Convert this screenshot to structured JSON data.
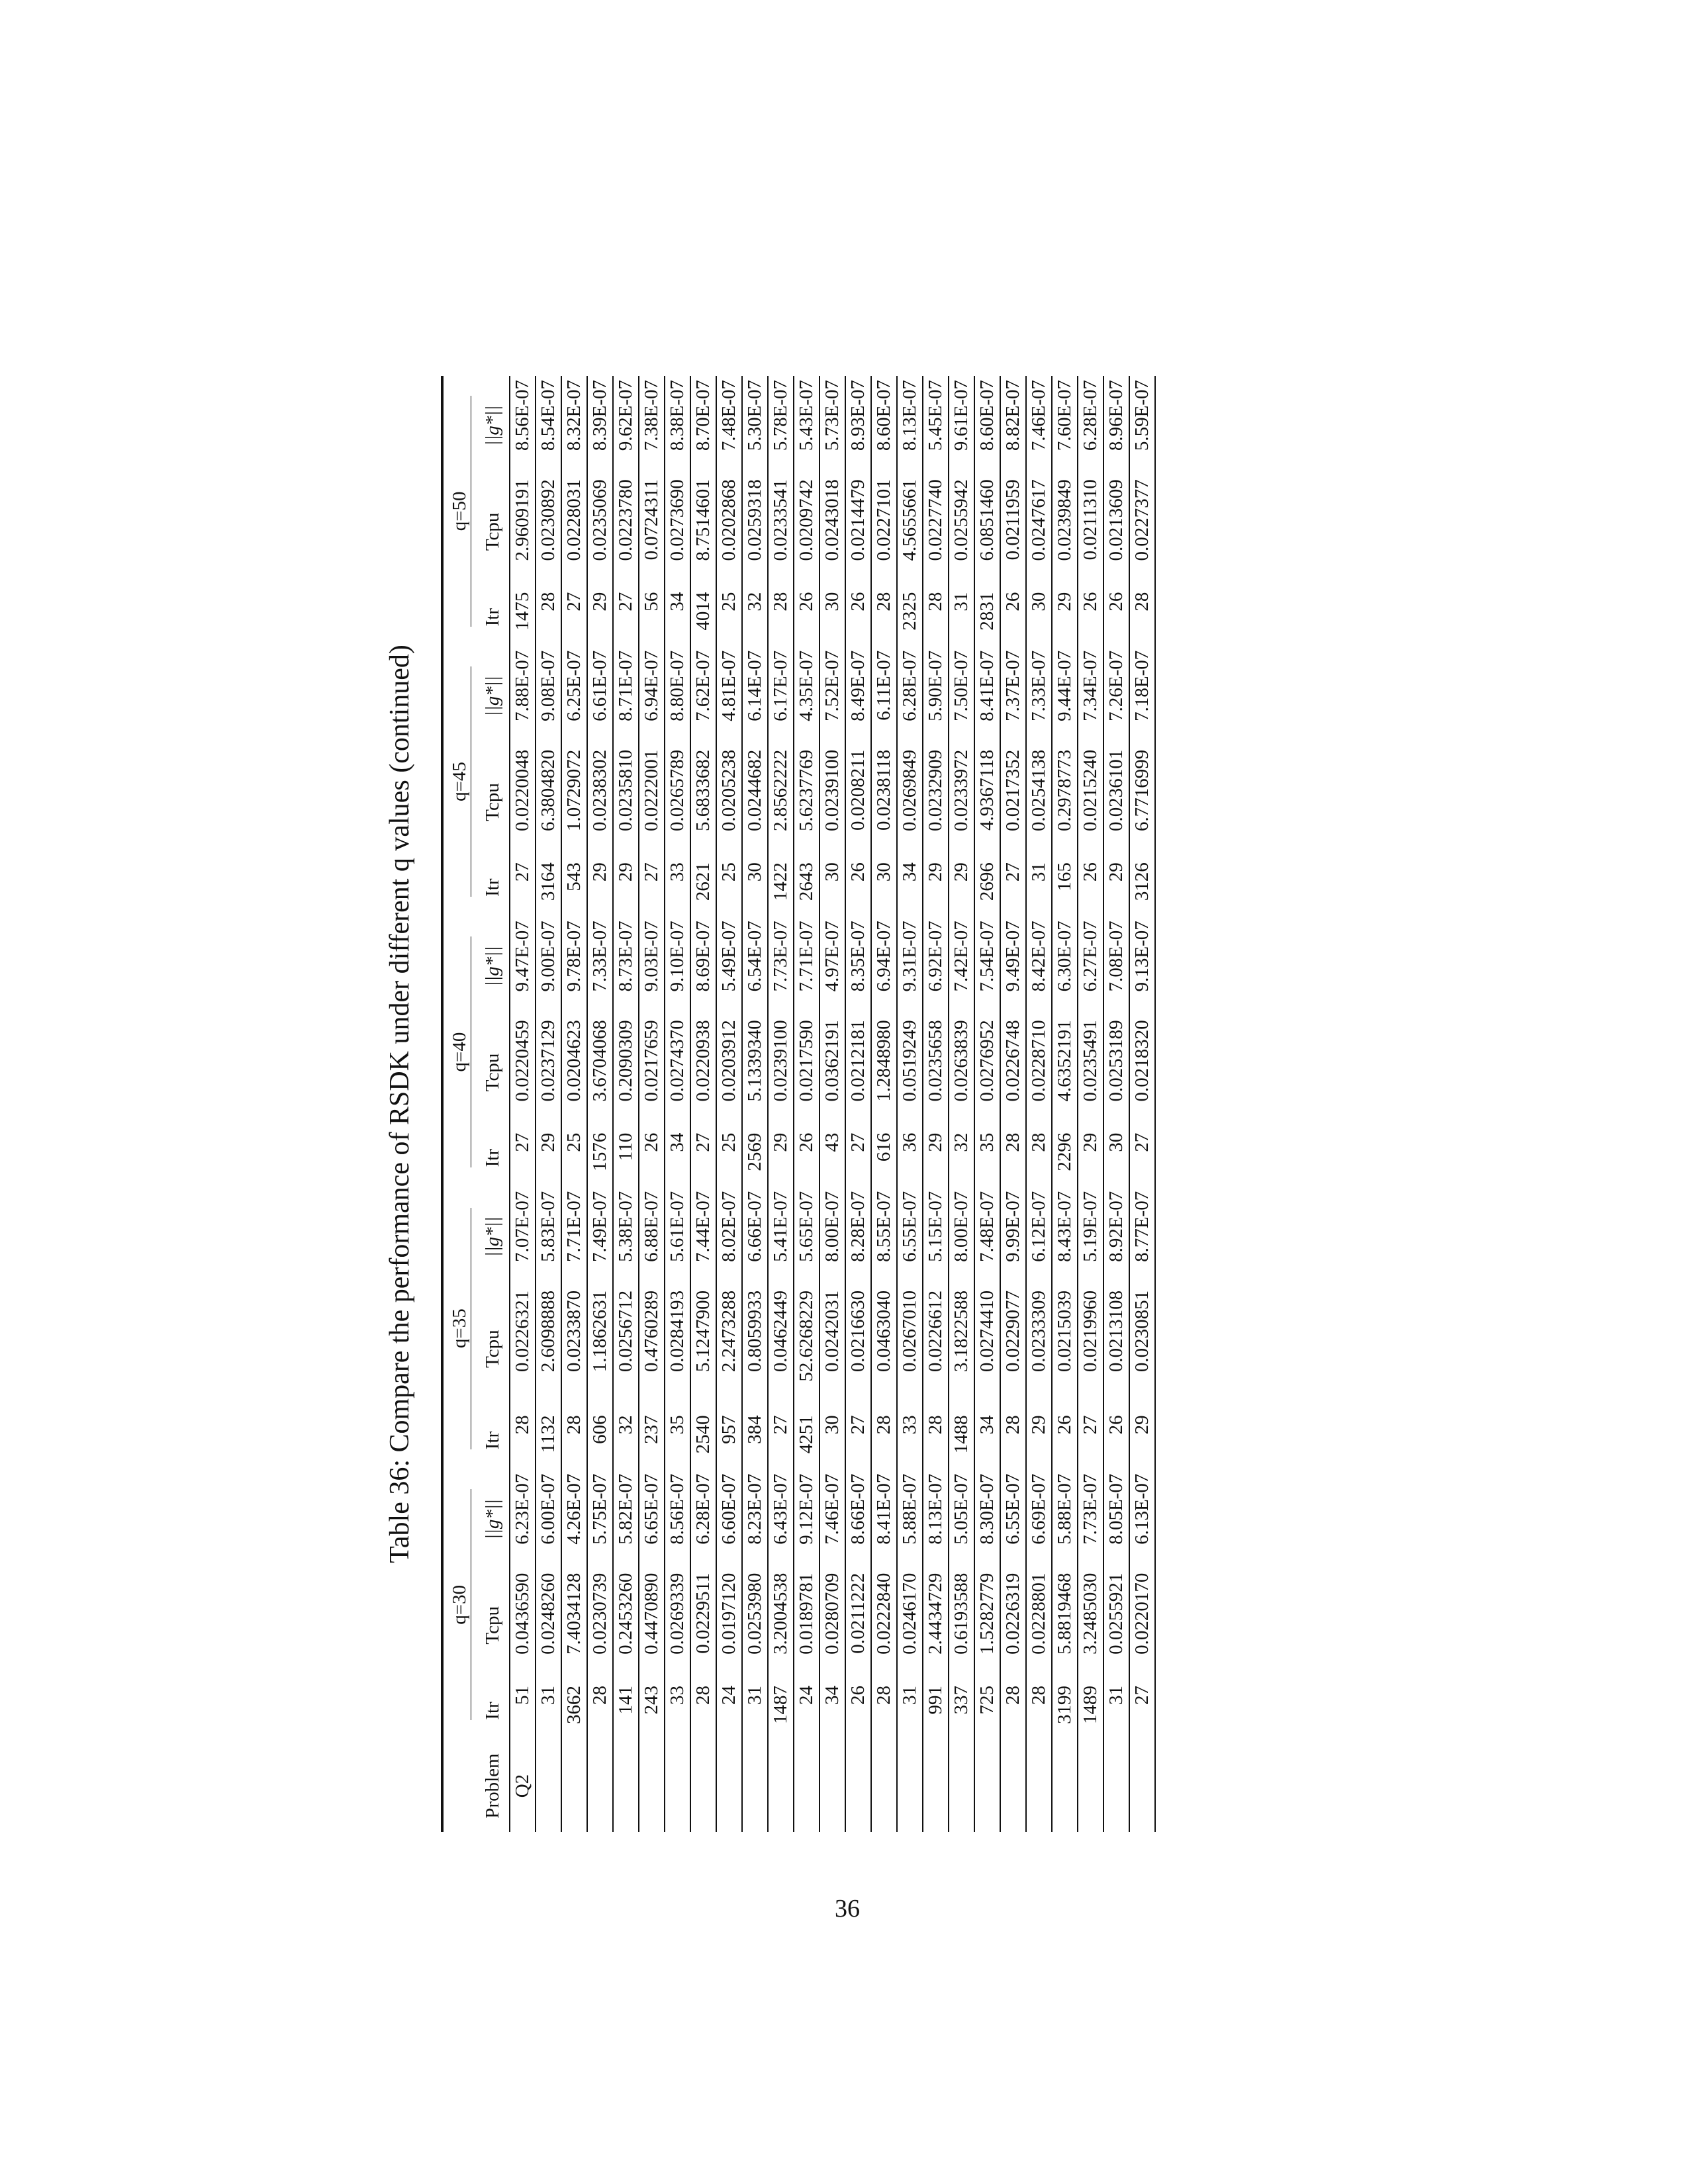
{
  "caption": "Table 36: Compare the performance of RSDK under different q values (continued)",
  "page_number": "36",
  "header": {
    "problem": "Problem",
    "groups": [
      "q=30",
      "q=35",
      "q=40",
      "q=45",
      "q=50"
    ],
    "subcols": [
      "Itr",
      "Tcpu",
      "||g*||"
    ]
  },
  "rows": [
    [
      "Q2",
      "51",
      "0.0436590",
      "6.23E-07",
      "28",
      "0.0226321",
      "7.07E-07",
      "27",
      "0.0220459",
      "9.47E-07",
      "27",
      "0.0220048",
      "7.88E-07",
      "1475",
      "2.9609191",
      "8.56E-07"
    ],
    [
      "",
      "31",
      "0.0248260",
      "6.00E-07",
      "1132",
      "2.6098888",
      "5.83E-07",
      "29",
      "0.0237129",
      "9.00E-07",
      "3164",
      "6.3804820",
      "9.08E-07",
      "28",
      "0.0230892",
      "8.54E-07"
    ],
    [
      "",
      "3662",
      "7.4034128",
      "4.26E-07",
      "28",
      "0.0233870",
      "7.71E-07",
      "25",
      "0.0204623",
      "9.78E-07",
      "543",
      "1.0729072",
      "6.25E-07",
      "27",
      "0.0228031",
      "8.32E-07"
    ],
    [
      "",
      "28",
      "0.0230739",
      "5.75E-07",
      "606",
      "1.1862631",
      "7.49E-07",
      "1576",
      "3.6704068",
      "7.33E-07",
      "29",
      "0.0238302",
      "6.61E-07",
      "29",
      "0.0235069",
      "8.39E-07"
    ],
    [
      "",
      "141",
      "0.2453260",
      "5.82E-07",
      "32",
      "0.0256712",
      "5.38E-07",
      "110",
      "0.2090309",
      "8.73E-07",
      "29",
      "0.0235810",
      "8.71E-07",
      "27",
      "0.0223780",
      "9.62E-07"
    ],
    [
      "",
      "243",
      "0.4470890",
      "6.65E-07",
      "237",
      "0.4760289",
      "6.88E-07",
      "26",
      "0.0217659",
      "9.03E-07",
      "27",
      "0.0222001",
      "6.94E-07",
      "56",
      "0.0724311",
      "7.38E-07"
    ],
    [
      "",
      "33",
      "0.0269339",
      "8.56E-07",
      "35",
      "0.0284193",
      "5.61E-07",
      "34",
      "0.0274370",
      "9.10E-07",
      "33",
      "0.0265789",
      "8.80E-07",
      "34",
      "0.0273690",
      "8.38E-07"
    ],
    [
      "",
      "28",
      "0.0229511",
      "6.28E-07",
      "2540",
      "5.1247900",
      "7.44E-07",
      "27",
      "0.0220938",
      "8.69E-07",
      "2621",
      "5.6833682",
      "7.62E-07",
      "4014",
      "8.7514601",
      "8.70E-07"
    ],
    [
      "",
      "24",
      "0.0197120",
      "6.60E-07",
      "957",
      "2.2473288",
      "8.02E-07",
      "25",
      "0.0203912",
      "5.49E-07",
      "25",
      "0.0205238",
      "4.81E-07",
      "25",
      "0.0202868",
      "7.48E-07"
    ],
    [
      "",
      "31",
      "0.0253980",
      "8.23E-07",
      "384",
      "0.8059933",
      "6.66E-07",
      "2569",
      "5.1339340",
      "6.54E-07",
      "30",
      "0.0244682",
      "6.14E-07",
      "32",
      "0.0259318",
      "5.30E-07"
    ],
    [
      "",
      "1487",
      "3.2004538",
      "6.43E-07",
      "27",
      "0.0462449",
      "5.41E-07",
      "29",
      "0.0239100",
      "7.73E-07",
      "1422",
      "2.8562222",
      "6.17E-07",
      "28",
      "0.0233541",
      "5.78E-07"
    ],
    [
      "",
      "24",
      "0.0189781",
      "9.12E-07",
      "4251",
      "52.6268229",
      "5.65E-07",
      "26",
      "0.0217590",
      "7.71E-07",
      "2643",
      "5.6237769",
      "4.35E-07",
      "26",
      "0.0209742",
      "5.43E-07"
    ],
    [
      "",
      "34",
      "0.0280709",
      "7.46E-07",
      "30",
      "0.0242031",
      "8.00E-07",
      "43",
      "0.0362191",
      "4.97E-07",
      "30",
      "0.0239100",
      "7.52E-07",
      "30",
      "0.0243018",
      "5.73E-07"
    ],
    [
      "",
      "26",
      "0.0211222",
      "8.66E-07",
      "27",
      "0.0216630",
      "8.28E-07",
      "27",
      "0.0212181",
      "8.35E-07",
      "26",
      "0.0208211",
      "8.49E-07",
      "26",
      "0.0214479",
      "8.93E-07"
    ],
    [
      "",
      "28",
      "0.0222840",
      "8.41E-07",
      "28",
      "0.0463040",
      "8.55E-07",
      "616",
      "1.2848980",
      "6.94E-07",
      "30",
      "0.0238118",
      "6.11E-07",
      "28",
      "0.0227101",
      "8.60E-07"
    ],
    [
      "",
      "31",
      "0.0246170",
      "5.88E-07",
      "33",
      "0.0267010",
      "6.55E-07",
      "36",
      "0.0519249",
      "9.31E-07",
      "34",
      "0.0269849",
      "6.28E-07",
      "2325",
      "4.5655661",
      "8.13E-07"
    ],
    [
      "",
      "991",
      "2.4434729",
      "8.13E-07",
      "28",
      "0.0226612",
      "5.15E-07",
      "29",
      "0.0235658",
      "6.92E-07",
      "29",
      "0.0232909",
      "5.90E-07",
      "28",
      "0.0227740",
      "5.45E-07"
    ],
    [
      "",
      "337",
      "0.6193588",
      "5.05E-07",
      "1488",
      "3.1822588",
      "8.00E-07",
      "32",
      "0.0263839",
      "7.42E-07",
      "29",
      "0.0233972",
      "7.50E-07",
      "31",
      "0.0255942",
      "9.61E-07"
    ],
    [
      "",
      "725",
      "1.5282779",
      "8.30E-07",
      "34",
      "0.0274410",
      "7.48E-07",
      "35",
      "0.0276952",
      "7.54E-07",
      "2696",
      "4.9367118",
      "8.41E-07",
      "2831",
      "6.0851460",
      "8.60E-07"
    ],
    [
      "",
      "28",
      "0.0226319",
      "6.55E-07",
      "28",
      "0.0229077",
      "9.99E-07",
      "28",
      "0.0226748",
      "9.49E-07",
      "27",
      "0.0217352",
      "7.37E-07",
      "26",
      "0.0211959",
      "8.82E-07"
    ],
    [
      "",
      "28",
      "0.0228801",
      "6.69E-07",
      "29",
      "0.0233309",
      "6.12E-07",
      "28",
      "0.0228710",
      "8.42E-07",
      "31",
      "0.0254138",
      "7.33E-07",
      "30",
      "0.0247617",
      "7.46E-07"
    ],
    [
      "",
      "3199",
      "5.8819468",
      "5.88E-07",
      "26",
      "0.0215039",
      "8.43E-07",
      "2296",
      "4.6352191",
      "6.30E-07",
      "165",
      "0.2978773",
      "9.44E-07",
      "29",
      "0.0239849",
      "7.60E-07"
    ],
    [
      "",
      "1489",
      "3.2485030",
      "7.73E-07",
      "27",
      "0.0219960",
      "5.19E-07",
      "29",
      "0.0235491",
      "6.27E-07",
      "26",
      "0.0215240",
      "7.34E-07",
      "26",
      "0.0211310",
      "6.28E-07"
    ],
    [
      "",
      "31",
      "0.0255921",
      "8.05E-07",
      "26",
      "0.0213108",
      "8.92E-07",
      "30",
      "0.0253189",
      "7.08E-07",
      "29",
      "0.0236101",
      "7.26E-07",
      "26",
      "0.0213609",
      "8.96E-07"
    ],
    [
      "",
      "27",
      "0.0220170",
      "6.13E-07",
      "29",
      "0.0230851",
      "8.77E-07",
      "27",
      "0.0218320",
      "9.13E-07",
      "3126",
      "6.7716999",
      "7.18E-07",
      "28",
      "0.0227377",
      "5.59E-07"
    ]
  ]
}
